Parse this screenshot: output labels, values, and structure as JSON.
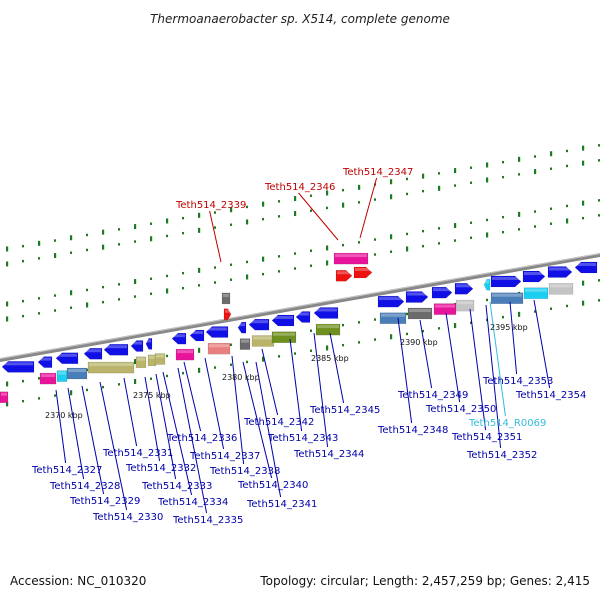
{
  "title": "Thermoanaerobacter sp. X514, complete genome",
  "footer": {
    "accession": "Accession: NC_010320",
    "summary": "Topology: circular; Length: 2,457,259 bp; Genes: 2,415"
  },
  "colors": {
    "blue": "#1010e6",
    "magenta": "#e8149a",
    "red": "#ee1111",
    "olive": "#6f8f1e",
    "khaki": "#b9b46a",
    "steel": "#4a7eb8",
    "gray": "#6b6b6b",
    "lightgray": "#c4c4c4",
    "cyan": "#1ccff0",
    "salmon": "#e98080",
    "label_blue": "#0000aa",
    "label_red": "#c00000",
    "label_cyan": "#33bbdd"
  },
  "scale": {
    "ticks": [
      "2370 kbp",
      "2375 kbp",
      "2380 kbp",
      "2385 kbp",
      "2390 kbp",
      "2395 kbp"
    ]
  },
  "labels": [
    {
      "id": "2327",
      "text": "Teth514_2327",
      "kind": "blue"
    },
    {
      "id": "2328",
      "text": "Teth514_2328",
      "kind": "blue"
    },
    {
      "id": "2329",
      "text": "Teth514_2329",
      "kind": "blue"
    },
    {
      "id": "2330",
      "text": "Teth514_2330",
      "kind": "blue"
    },
    {
      "id": "2331",
      "text": "Teth514_2331",
      "kind": "blue"
    },
    {
      "id": "2332",
      "text": "Teth514_2332",
      "kind": "blue"
    },
    {
      "id": "2333",
      "text": "Teth514_2333",
      "kind": "blue"
    },
    {
      "id": "2334",
      "text": "Teth514_2334",
      "kind": "blue"
    },
    {
      "id": "2335",
      "text": "Teth514_2335",
      "kind": "blue"
    },
    {
      "id": "2336",
      "text": "Teth514_2336",
      "kind": "blue"
    },
    {
      "id": "2337",
      "text": "Teth514_2337",
      "kind": "blue"
    },
    {
      "id": "2338",
      "text": "Teth514_2338",
      "kind": "blue"
    },
    {
      "id": "2340",
      "text": "Teth514_2340",
      "kind": "blue"
    },
    {
      "id": "2341",
      "text": "Teth514_2341",
      "kind": "blue"
    },
    {
      "id": "2342",
      "text": "Teth514_2342",
      "kind": "blue"
    },
    {
      "id": "2343",
      "text": "Teth514_2343",
      "kind": "blue"
    },
    {
      "id": "2344",
      "text": "Teth514_2344",
      "kind": "blue"
    },
    {
      "id": "2345",
      "text": "Teth514_2345",
      "kind": "blue"
    },
    {
      "id": "2348",
      "text": "Teth514_2348",
      "kind": "blue"
    },
    {
      "id": "2349",
      "text": "Teth514_2349",
      "kind": "blue"
    },
    {
      "id": "2350",
      "text": "Teth514_2350",
      "kind": "blue"
    },
    {
      "id": "2351",
      "text": "Teth514_2351",
      "kind": "blue"
    },
    {
      "id": "2352",
      "text": "Teth514_2352",
      "kind": "blue"
    },
    {
      "id": "2353",
      "text": "Teth514_2353",
      "kind": "blue"
    },
    {
      "id": "2354",
      "text": "Teth514_2354",
      "kind": "blue"
    },
    {
      "id": "R0069",
      "text": "Teth514_R0069",
      "kind": "cyan"
    },
    {
      "id": "2339",
      "text": "Teth514_2339",
      "kind": "red"
    },
    {
      "id": "2346",
      "text": "Teth514_2346",
      "kind": "red"
    },
    {
      "id": "2347",
      "text": "Teth514_2347",
      "kind": "red"
    }
  ]
}
